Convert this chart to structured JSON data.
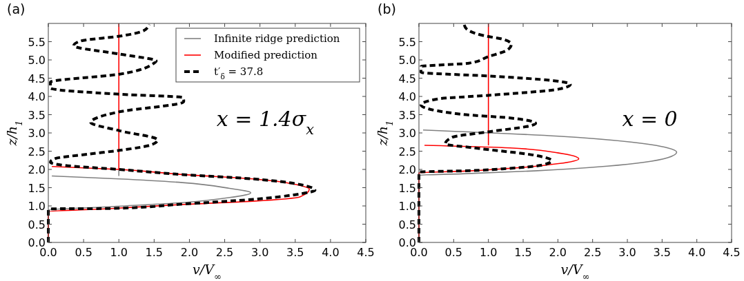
{
  "chart_data": [
    {
      "type": "line",
      "title": "(a)",
      "xlabel": "v/V$_{∞}$",
      "ylabel": "z/h$_{1}$",
      "annotations": [
        "x = 1.4σ$_{x}$"
      ],
      "xlim": [
        0,
        4.5
      ],
      "ylim": [
        0,
        6
      ],
      "xticks": [
        {
          "value": 0,
          "label": "0.0"
        },
        0.5,
        {
          "value": 1,
          "label": "1.0"
        },
        1.5,
        {
          "value": 2,
          "label": "2.0"
        },
        2.5,
        {
          "value": 3,
          "label": "3.0"
        },
        3.5,
        {
          "value": 4,
          "label": "4.0"
        },
        4.5
      ],
      "yticks": [
        {
          "value": 0,
          "label": "0.0"
        },
        0.5,
        {
          "value": 1,
          "label": "1.0"
        },
        1.5,
        {
          "value": 2,
          "label": "2.0"
        },
        2.5,
        {
          "value": 3,
          "label": "3.0"
        },
        3.5,
        {
          "value": 4,
          "label": "4.0"
        },
        4.5,
        {
          "value": 5,
          "label": "5.0"
        },
        5.5
      ],
      "legend": "top right",
      "grid": false,
      "series": [
        {
          "name": "Infinite ridge prediction",
          "color": "#808080",
          "line_style": "solid",
          "x": [
            0,
            0,
            0.9,
            1.9,
            2.57,
            2.87,
            2.57,
            1.9,
            1.0,
            0.05
          ],
          "values": [
            0,
            0.88,
            0.98,
            1.09,
            1.23,
            1.36,
            1.48,
            1.64,
            1.74,
            1.82
          ]
        },
        {
          "color": "#808080",
          "line_style": "solid",
          "x": [
            1,
            1
          ],
          "values": [
            1.82,
            2.0
          ]
        },
        {
          "name": "Modified prediction",
          "color": "#ff0000",
          "line_style": "solid",
          "x": [
            0,
            0,
            0.9,
            1.9,
            2.9,
            3.57,
            3.7,
            3.57,
            2.9,
            1.9,
            1.0,
            0.05
          ],
          "values": [
            0,
            0.84,
            0.93,
            1.04,
            1.13,
            1.25,
            1.46,
            1.56,
            1.74,
            1.86,
            2.0,
            2.08
          ]
        },
        {
          "color": "#ff0000",
          "line_style": "solid",
          "x": [
            1,
            1
          ],
          "values": [
            2.0,
            6
          ]
        },
        {
          "name": "t′$_{δ}$ = 37.8",
          "color": "#000000",
          "line_style": "dashed",
          "x": [
            0,
            0,
            0.05,
            0.9,
            1.9,
            2.9,
            3.57,
            3.78,
            3.67,
            2.9,
            1.9,
            1.0,
            0.23,
            0.03,
            0.1,
            0.57,
            1.0,
            1.47,
            1.55,
            1.01,
            0.6,
            0.74,
            1.01,
            1.91,
            1.92,
            1.91,
            1.01,
            0.03,
            0.03,
            1.01,
            1.49,
            1.53,
            1.01,
            0.36,
            0.46,
            1.01,
            1.36,
            1.43
          ],
          "values": [
            0,
            0.9,
            0.92,
            0.93,
            1.05,
            1.18,
            1.33,
            1.43,
            1.54,
            1.74,
            1.86,
            2.0,
            2.11,
            2.2,
            2.3,
            2.42,
            2.52,
            2.68,
            2.81,
            3.06,
            3.29,
            3.45,
            3.58,
            3.84,
            3.87,
            3.97,
            4.06,
            4.23,
            4.39,
            4.61,
            4.9,
            4.97,
            5.16,
            5.39,
            5.52,
            5.65,
            5.81,
            5.97
          ]
        }
      ]
    },
    {
      "type": "line",
      "title": "(b)",
      "xlabel": "v/V$_{∞}$",
      "ylabel": "z/h$_{1}$",
      "annotations": [
        "x = 0"
      ],
      "xlim": [
        0,
        4.5
      ],
      "ylim": [
        0,
        6
      ],
      "xticks": [
        {
          "value": 0,
          "label": "0.0"
        },
        0.5,
        {
          "value": 1,
          "label": "1.0"
        },
        1.5,
        {
          "value": 2,
          "label": "2.0"
        },
        2.5,
        {
          "value": 3,
          "label": "3.0"
        },
        3.5,
        {
          "value": 4,
          "label": "4.0"
        },
        4.5
      ],
      "yticks": [
        {
          "value": 0,
          "label": "0.0"
        },
        0.5,
        {
          "value": 1,
          "label": "1.0"
        },
        1.5,
        {
          "value": 2,
          "label": "2.0"
        },
        2.5,
        {
          "value": 3,
          "label": "3.0"
        },
        3.5,
        {
          "value": 4,
          "label": "4.0"
        },
        4.5,
        {
          "value": 5,
          "label": "5.0"
        },
        5.5
      ],
      "legend": false,
      "grid": false,
      "series": [
        {
          "color": "#808080",
          "line_style": "solid",
          "x": [
            0,
            0,
            0.62,
            1.66,
            2.71,
            3.58,
            3.71,
            3.58,
            3.05,
            2.01,
            0.06
          ],
          "values": [
            0,
            1.84,
            1.88,
            1.96,
            2.09,
            2.32,
            2.47,
            2.59,
            2.75,
            2.91,
            3.08
          ]
        },
        {
          "color": "#ff0000",
          "line_style": "solid",
          "x": [
            0,
            0,
            0.62,
            1.31,
            2.01,
            2.3,
            2.01,
            1.31,
            0.08
          ],
          "values": [
            0,
            1.91,
            1.95,
            2.03,
            2.16,
            2.29,
            2.45,
            2.59,
            2.66
          ]
        },
        {
          "color": "#ff0000",
          "line_style": "solid",
          "x": [
            1,
            1
          ],
          "values": [
            2.66,
            6
          ]
        },
        {
          "color": "#000000",
          "line_style": "dashed",
          "x": [
            0,
            0,
            0.62,
            1.31,
            1.8,
            1.91,
            1.66,
            0.79,
            0.38,
            0.48,
            1.0,
            1.63,
            1.68,
            1.31,
            0.62,
            0.03,
            0.27,
            1.0,
            2.01,
            2.18,
            1.94,
            1.0,
            0.03,
            0.03,
            0.72,
            1.0,
            1.28,
            1.33,
            1.18,
            1.0,
            0.69,
            0.65
          ],
          "values": [
            0,
            1.93,
            1.96,
            2.03,
            2.13,
            2.24,
            2.39,
            2.59,
            2.7,
            2.88,
            3.03,
            3.21,
            3.26,
            3.41,
            3.51,
            3.77,
            3.93,
            4.03,
            4.2,
            4.33,
            4.43,
            4.56,
            4.66,
            4.82,
            4.91,
            5.09,
            5.28,
            5.43,
            5.58,
            5.64,
            5.84,
            5.97
          ]
        }
      ]
    }
  ]
}
